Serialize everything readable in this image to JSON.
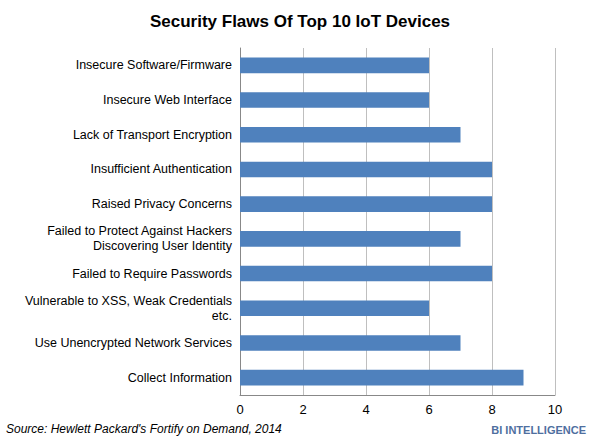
{
  "chart_data": {
    "type": "bar",
    "title": "Security Flaws Of Top 10 IoT Devices",
    "orientation": "horizontal",
    "categories": [
      "Insecure Software/Firmware",
      "Insecure Web Interface",
      "Lack of Transport Encryption",
      "Insufficient Authentication",
      "Raised Privacy Concerns",
      "Failed to Protect Against Hackers\nDiscovering User Identity",
      "Failed to Require Passwords",
      "Vulnerable to XSS, Weak Credentials\netc.",
      "Use Unencrypted Network Services",
      "Collect Information"
    ],
    "values": [
      6,
      6,
      7,
      8,
      8,
      7,
      8,
      6,
      7,
      9
    ],
    "color": "#4f81bd",
    "xlim": [
      0,
      10
    ],
    "xticks": [
      0,
      2,
      4,
      6,
      8,
      10
    ],
    "grid": true,
    "annotations": [
      "Source: Hewlett Packard's Fortify on Demand, 2014",
      "BI INTELLIGENCE"
    ]
  }
}
